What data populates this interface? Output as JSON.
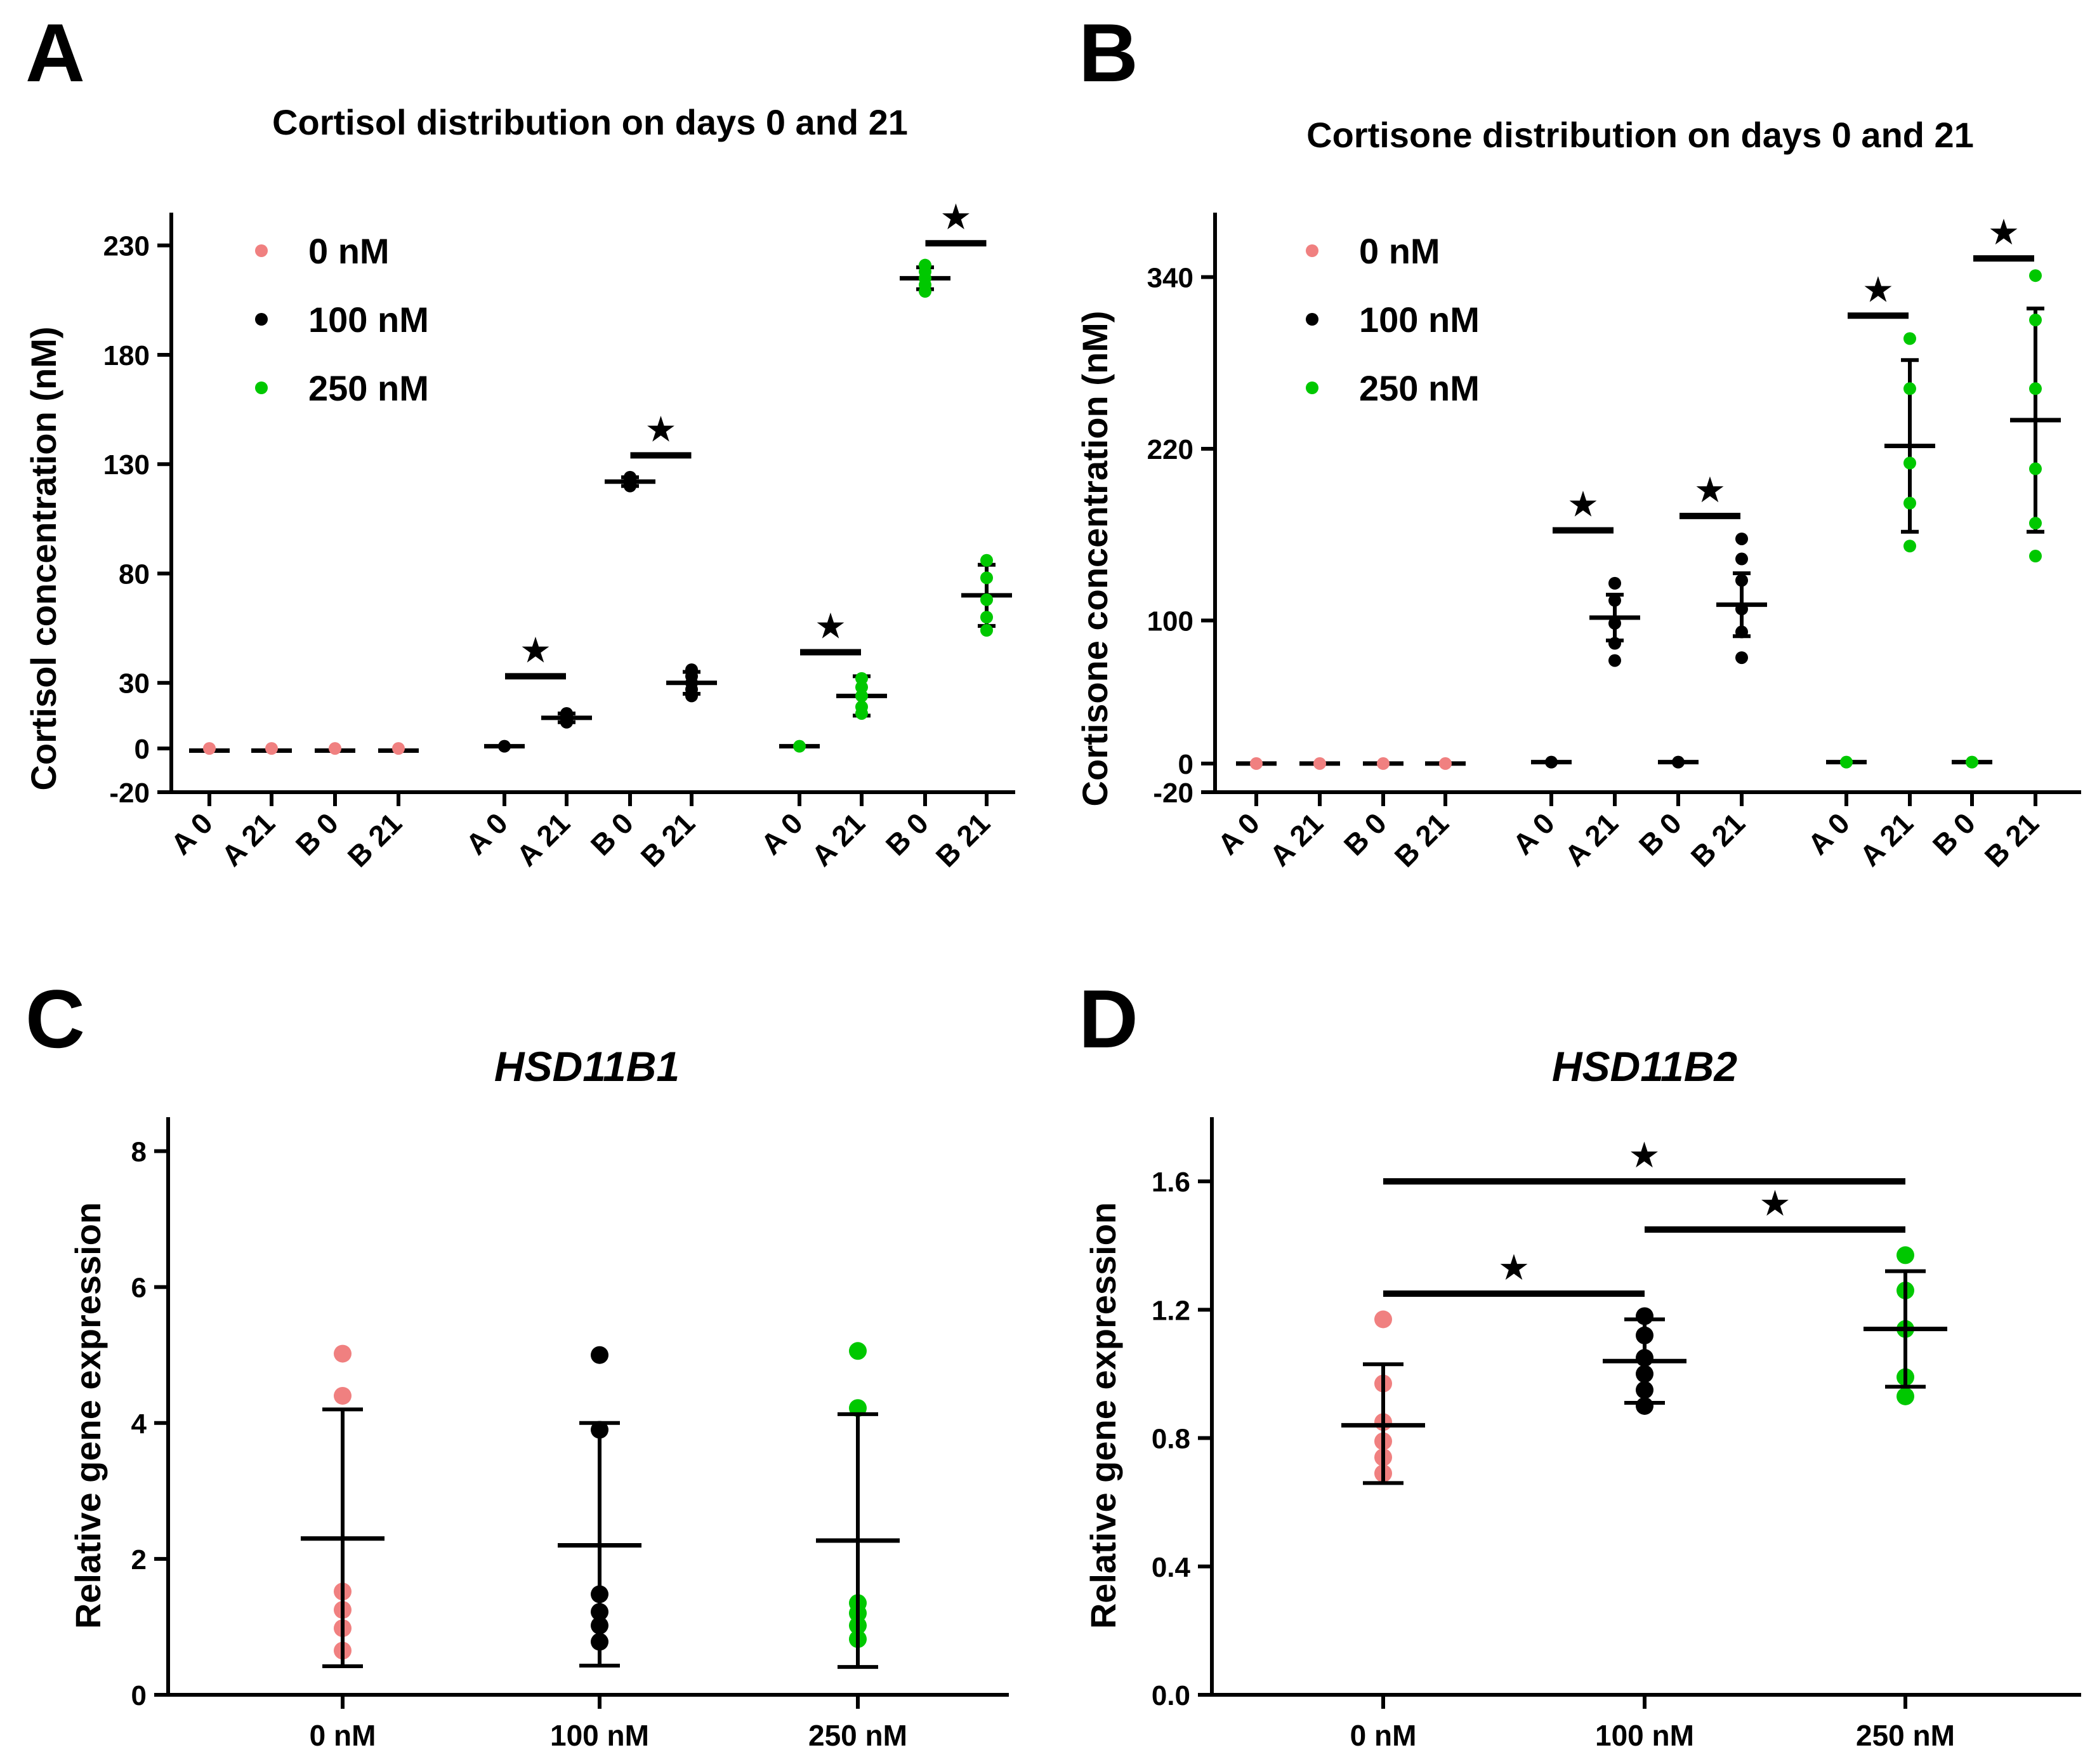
{
  "colors": {
    "c0": "#f08080",
    "c100": "#000000",
    "c250": "#00c800"
  },
  "legend": [
    {
      "label": "0 nM",
      "color": "#f08080"
    },
    {
      "label": "100 nM",
      "color": "#000000"
    },
    {
      "label": "250 nM",
      "color": "#00c800"
    }
  ],
  "chart_data": [
    {
      "panel": "A",
      "type": "scatter",
      "title": "Cortisol distribution on days 0 and 21",
      "ylabel": "Cortisol concentration (nM)",
      "xlabel": "",
      "ylim": [
        -20,
        245
      ],
      "yticks": [
        -20,
        0,
        30,
        80,
        130,
        180,
        230
      ],
      "groups": [
        {
          "group": "0 nM",
          "color": "#f08080",
          "categories": [
            {
              "label": "A 0",
              "mean": -1,
              "sd": 0,
              "points": [
                0
              ]
            },
            {
              "label": "A 21",
              "mean": -1,
              "sd": 0,
              "points": [
                0
              ]
            },
            {
              "label": "B 0",
              "mean": -1,
              "sd": 0,
              "points": [
                0
              ]
            },
            {
              "label": "B 21",
              "mean": -1,
              "sd": 0,
              "points": [
                0
              ]
            }
          ]
        },
        {
          "group": "100 nM",
          "color": "#000000",
          "categories": [
            {
              "label": "A 0",
              "mean": 1,
              "sd": 0,
              "points": [
                1
              ]
            },
            {
              "label": "A 21",
              "mean": 14,
              "sd": 2,
              "points": [
                12,
                13,
                14,
                15,
                16
              ]
            },
            {
              "label": "B 0",
              "mean": 122,
              "sd": 2,
              "points": [
                120,
                121,
                122,
                123,
                124
              ]
            },
            {
              "label": "B 21",
              "mean": 30,
              "sd": 5,
              "points": [
                24,
                27,
                30,
                33,
                36
              ]
            }
          ]
        },
        {
          "group": "250 nM",
          "color": "#00c800",
          "categories": [
            {
              "label": "A 0",
              "mean": 1,
              "sd": 0,
              "points": [
                1
              ]
            },
            {
              "label": "A 21",
              "mean": 24,
              "sd": 9,
              "points": [
                16,
                19,
                24,
                28,
                32
              ]
            },
            {
              "label": "B 0",
              "mean": 215,
              "sd": 5,
              "points": [
                209,
                212,
                215,
                218,
                221
              ]
            },
            {
              "label": "B 21",
              "mean": 70,
              "sd": 14,
              "points": [
                54,
                60,
                68,
                78,
                86
              ]
            }
          ]
        }
      ],
      "significance": [
        {
          "group": "100 nM",
          "from": "A 0",
          "to": "A 21",
          "y": 33,
          "label": "★"
        },
        {
          "group": "100 nM",
          "from": "B 0",
          "to": "B 21",
          "y": 134,
          "label": "★"
        },
        {
          "group": "250 nM",
          "from": "A 0",
          "to": "A 21",
          "y": 44,
          "label": "★"
        },
        {
          "group": "250 nM",
          "from": "B 0",
          "to": "B 21",
          "y": 231,
          "label": "★"
        }
      ]
    },
    {
      "panel": "B",
      "type": "scatter",
      "title": "Cortisone distribution on days 0 and 21",
      "ylabel": "Cortisone concentration (nM)",
      "xlabel": "",
      "ylim": [
        -20,
        385
      ],
      "yticks": [
        -20,
        0,
        100,
        220,
        340
      ],
      "groups": [
        {
          "group": "0 nM",
          "color": "#f08080",
          "categories": [
            {
              "label": "A 0",
              "mean": 0,
              "sd": 0,
              "points": [
                0
              ]
            },
            {
              "label": "A 21",
              "mean": 0,
              "sd": 0,
              "points": [
                0
              ]
            },
            {
              "label": "B 0",
              "mean": 0,
              "sd": 0,
              "points": [
                0
              ]
            },
            {
              "label": "B 21",
              "mean": 0,
              "sd": 0,
              "points": [
                0
              ]
            }
          ]
        },
        {
          "group": "100 nM",
          "color": "#000000",
          "categories": [
            {
              "label": "A 0",
              "mean": 1,
              "sd": 0,
              "points": [
                1
              ]
            },
            {
              "label": "A 21",
              "mean": 102,
              "sd": 16,
              "points": [
                72,
                84,
                98,
                114,
                126
              ]
            },
            {
              "label": "B 0",
              "mean": 1,
              "sd": 0,
              "points": [
                1
              ]
            },
            {
              "label": "B 21",
              "mean": 111,
              "sd": 22,
              "points": [
                74,
                92,
                108,
                128,
                143,
                157
              ]
            }
          ]
        },
        {
          "group": "250 nM",
          "color": "#00c800",
          "categories": [
            {
              "label": "A 0",
              "mean": 1,
              "sd": 0,
              "points": [
                1
              ]
            },
            {
              "label": "A 21",
              "mean": 222,
              "sd": 60,
              "points": [
                152,
                182,
                210,
                262,
                297
              ]
            },
            {
              "label": "B 0",
              "mean": 1,
              "sd": 0,
              "points": [
                1
              ]
            },
            {
              "label": "B 21",
              "mean": 240,
              "sd": 78,
              "points": [
                145,
                168,
                206,
                262,
                310,
                341
              ]
            }
          ]
        }
      ],
      "significance": [
        {
          "group": "100 nM",
          "from": "A 0",
          "to": "A 21",
          "y": 163,
          "label": "★"
        },
        {
          "group": "100 nM",
          "from": "B 0",
          "to": "B 21",
          "y": 173,
          "label": "★"
        },
        {
          "group": "250 nM",
          "from": "A 0",
          "to": "A 21",
          "y": 313,
          "label": "★"
        },
        {
          "group": "250 nM",
          "from": "B 0",
          "to": "B 21",
          "y": 353,
          "label": "★"
        }
      ]
    },
    {
      "panel": "C",
      "type": "scatter",
      "title": "HSD11B1",
      "ylabel": "Relative gene expression",
      "xlabel": "",
      "ylim": [
        0,
        8.5
      ],
      "yticks": [
        0,
        2,
        4,
        6,
        8
      ],
      "categories": [
        "0 nM",
        "100 nM",
        "250 nM"
      ],
      "series": [
        {
          "name": "0 nM",
          "color": "#f08080",
          "mean": 2.3,
          "sd_low": 0.42,
          "sd_high": 4.2,
          "points": [
            0.65,
            0.98,
            1.25,
            1.52,
            4.4,
            5.02
          ]
        },
        {
          "name": "100 nM",
          "color": "#000000",
          "mean": 2.2,
          "sd_low": 0.43,
          "sd_high": 4.0,
          "points": [
            0.78,
            1.02,
            1.22,
            1.48,
            3.9,
            5.0
          ]
        },
        {
          "name": "250 nM",
          "color": "#00c800",
          "mean": 2.27,
          "sd_low": 0.41,
          "sd_high": 4.13,
          "points": [
            0.82,
            1.02,
            1.2,
            1.35,
            4.22,
            5.06
          ]
        }
      ],
      "significance": []
    },
    {
      "panel": "D",
      "type": "scatter",
      "title": "HSD11B2",
      "ylabel": "Relative gene expression",
      "xlabel": "",
      "ylim": [
        0,
        1.8
      ],
      "yticks": [
        0.0,
        0.4,
        0.8,
        1.2,
        1.6
      ],
      "yticklabels": [
        "0.0",
        "0.4",
        "0.8",
        "1.2",
        "1.6"
      ],
      "categories": [
        "0 nM",
        "100 nM",
        "250 nM"
      ],
      "series": [
        {
          "name": "0 nM",
          "color": "#f08080",
          "mean": 0.84,
          "sd_low": 0.66,
          "sd_high": 1.03,
          "points": [
            0.69,
            0.74,
            0.79,
            0.85,
            0.97,
            1.17
          ]
        },
        {
          "name": "100 nM",
          "color": "#000000",
          "mean": 1.04,
          "sd_low": 0.91,
          "sd_high": 1.17,
          "points": [
            0.9,
            0.95,
            1.0,
            1.05,
            1.12,
            1.18
          ]
        },
        {
          "name": "250 nM",
          "color": "#00c800",
          "mean": 1.14,
          "sd_low": 0.96,
          "sd_high": 1.32,
          "points": [
            0.93,
            0.99,
            1.14,
            1.26,
            1.37
          ]
        }
      ],
      "significance": [
        {
          "from": "0 nM",
          "to": "250 nM",
          "y": 1.6,
          "label": "★"
        },
        {
          "from": "100 nM",
          "to": "250 nM",
          "y": 1.45,
          "label": "★"
        },
        {
          "from": "0 nM",
          "to": "100 nM",
          "y": 1.25,
          "label": "★"
        }
      ]
    }
  ]
}
